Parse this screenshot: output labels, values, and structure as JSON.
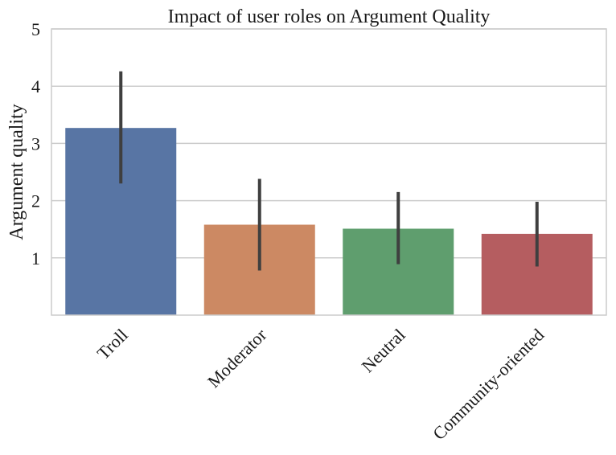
{
  "chart_data": {
    "type": "bar",
    "title": "Impact of user roles on Argument Quality",
    "xlabel": "",
    "ylabel": "Argument quality",
    "categories": [
      "Troll",
      "Moderator",
      "Neutral",
      "Community-oriented"
    ],
    "values": [
      3.27,
      1.58,
      1.51,
      1.42
    ],
    "error_bars": [
      {
        "low": 2.3,
        "high": 4.26
      },
      {
        "low": 0.78,
        "high": 2.38
      },
      {
        "low": 0.89,
        "high": 2.15
      },
      {
        "low": 0.85,
        "high": 1.98
      }
    ],
    "colors": [
      "#5875a4",
      "#cc8963",
      "#5f9e6e",
      "#b55d60"
    ],
    "ylim": [
      0,
      5
    ],
    "yticks": [
      "1",
      "2",
      "3",
      "4",
      "5"
    ],
    "grid": true,
    "grid_axis": "y"
  }
}
